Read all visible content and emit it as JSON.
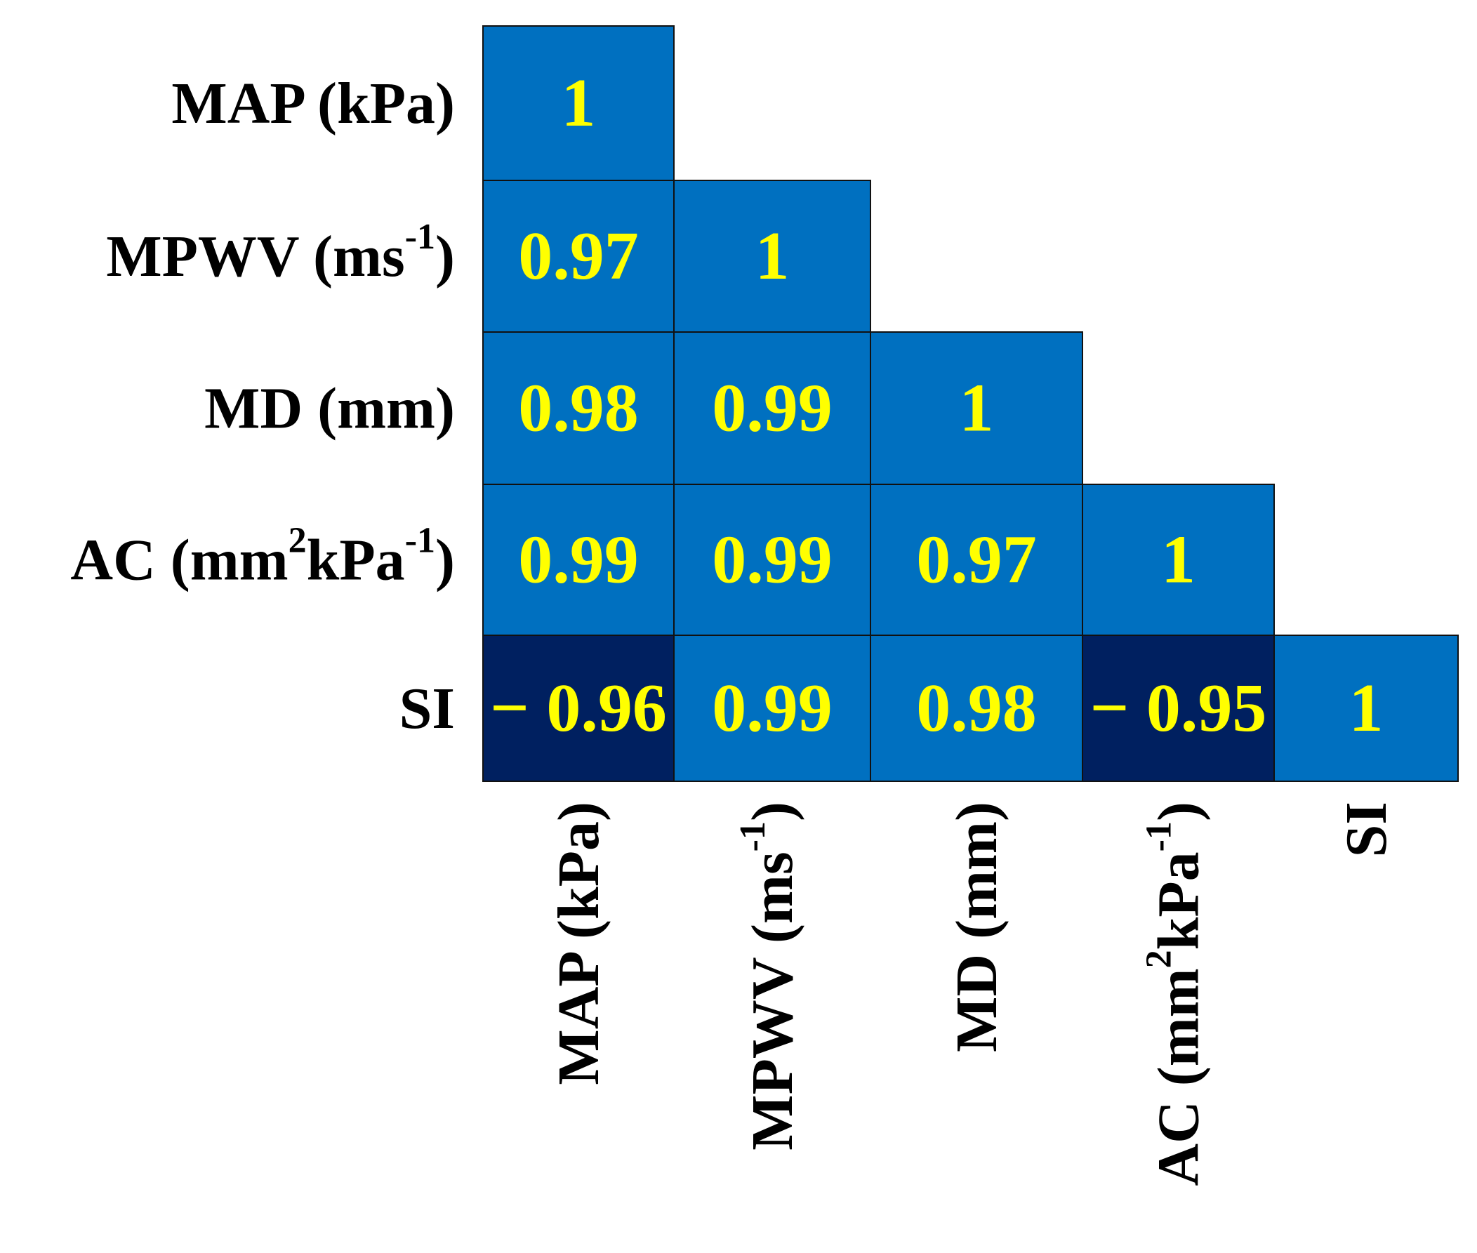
{
  "chart_data": {
    "type": "heatmap",
    "layout": "lower-triangular correlation matrix",
    "variables": [
      {
        "name": "MAP (kPa)",
        "parts": [
          {
            "t": "MAP (kPa)"
          }
        ]
      },
      {
        "name": "MPWV (ms-1)",
        "parts": [
          {
            "t": "MPWV (ms"
          },
          {
            "t": "-1",
            "sup": true
          },
          {
            "t": ")"
          }
        ]
      },
      {
        "name": "MD (mm)",
        "parts": [
          {
            "t": "MD (mm)"
          }
        ]
      },
      {
        "name": "AC (mm2kPa-1)",
        "parts": [
          {
            "t": "AC (mm"
          },
          {
            "t": "2",
            "sup": true
          },
          {
            "t": "kPa"
          },
          {
            "t": "-1",
            "sup": true
          },
          {
            "t": ")"
          }
        ]
      },
      {
        "name": "SI",
        "parts": [
          {
            "t": "SI"
          }
        ]
      }
    ],
    "matrix": [
      [
        1
      ],
      [
        0.97,
        1
      ],
      [
        0.98,
        0.99,
        1
      ],
      [
        0.99,
        0.99,
        0.97,
        1
      ],
      [
        -0.96,
        0.99,
        0.98,
        -0.95,
        1
      ]
    ],
    "value_labels": [
      [
        "1"
      ],
      [
        "0.97",
        "1"
      ],
      [
        "0.98",
        "0.99",
        "1"
      ],
      [
        "0.99",
        "0.99",
        "0.97",
        "1"
      ],
      [
        "− 0.96",
        "0.99",
        "0.98",
        "− 0.95",
        "1"
      ]
    ],
    "colors": {
      "positive": "#0070C0",
      "negative": "#002060",
      "value_text": "#FFFF00",
      "grid": "#111111",
      "label_text": "#000000"
    }
  }
}
